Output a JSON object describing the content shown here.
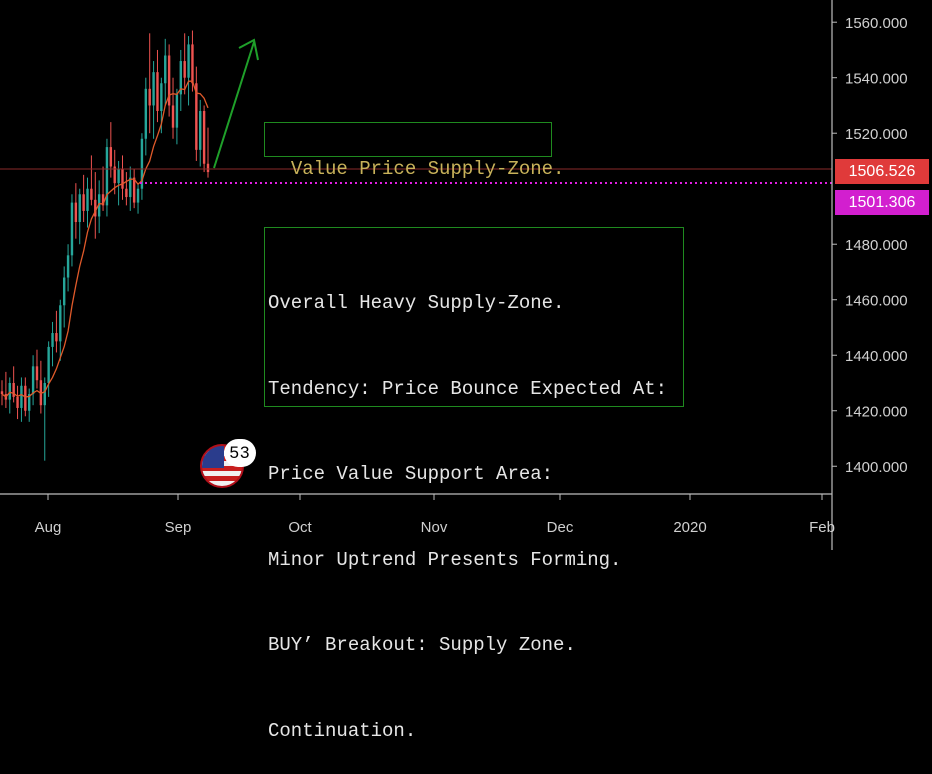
{
  "chart_data": {
    "type": "candlestick",
    "xlabels": [
      "Aug",
      "Sep",
      "Oct",
      "Nov",
      "Dec",
      "2020",
      "Feb"
    ],
    "ylim": [
      1390,
      1568
    ],
    "yticks": [
      "1560.000",
      "1540.000",
      "1520.000",
      "1480.000",
      "1460.000",
      "1440.000",
      "1420.000",
      "1400.000"
    ],
    "last_price": "1506.526",
    "horizontal_line": "1501.306",
    "colors": {
      "up": "#26a69a",
      "down": "#ef5350",
      "ma": "#e05a2a",
      "hline": "#e01fe0",
      "arrow": "#1fa02a",
      "last": "#e03a3a"
    },
    "candles": [
      [
        1427,
        1431,
        1422,
        1426
      ],
      [
        1426,
        1434,
        1421,
        1424
      ],
      [
        1424,
        1432,
        1419,
        1430
      ],
      [
        1430,
        1436,
        1423,
        1425
      ],
      [
        1425,
        1429,
        1417,
        1421
      ],
      [
        1421,
        1432,
        1416,
        1429
      ],
      [
        1429,
        1432,
        1418,
        1420
      ],
      [
        1420,
        1428,
        1416,
        1426
      ],
      [
        1426,
        1440,
        1422,
        1436
      ],
      [
        1436,
        1442,
        1428,
        1431
      ],
      [
        1431,
        1438,
        1419,
        1422
      ],
      [
        1422,
        1432,
        1402,
        1430
      ],
      [
        1430,
        1445,
        1425,
        1443
      ],
      [
        1443,
        1452,
        1436,
        1448
      ],
      [
        1448,
        1456,
        1441,
        1445
      ],
      [
        1445,
        1460,
        1438,
        1458
      ],
      [
        1458,
        1472,
        1450,
        1468
      ],
      [
        1468,
        1480,
        1463,
        1476
      ],
      [
        1476,
        1498,
        1472,
        1495
      ],
      [
        1495,
        1502,
        1482,
        1488
      ],
      [
        1488,
        1500,
        1480,
        1498
      ],
      [
        1498,
        1505,
        1488,
        1492
      ],
      [
        1492,
        1504,
        1486,
        1500
      ],
      [
        1500,
        1512,
        1494,
        1496
      ],
      [
        1496,
        1506,
        1482,
        1490
      ],
      [
        1490,
        1503,
        1484,
        1498
      ],
      [
        1498,
        1508,
        1492,
        1494
      ],
      [
        1494,
        1518,
        1490,
        1515
      ],
      [
        1515,
        1524,
        1504,
        1508
      ],
      [
        1508,
        1514,
        1498,
        1502
      ],
      [
        1502,
        1510,
        1494,
        1507
      ],
      [
        1507,
        1512,
        1496,
        1500
      ],
      [
        1500,
        1506,
        1494,
        1497
      ],
      [
        1497,
        1508,
        1492,
        1504
      ],
      [
        1504,
        1507,
        1493,
        1495
      ],
      [
        1495,
        1502,
        1491,
        1500
      ],
      [
        1500,
        1520,
        1496,
        1518
      ],
      [
        1518,
        1540,
        1512,
        1536
      ],
      [
        1536,
        1556,
        1520,
        1530
      ],
      [
        1530,
        1546,
        1518,
        1542
      ],
      [
        1542,
        1550,
        1524,
        1528
      ],
      [
        1528,
        1540,
        1520,
        1538
      ],
      [
        1538,
        1554,
        1530,
        1548
      ],
      [
        1548,
        1552,
        1526,
        1530
      ],
      [
        1530,
        1540,
        1518,
        1522
      ],
      [
        1522,
        1536,
        1516,
        1534
      ],
      [
        1534,
        1550,
        1528,
        1546
      ],
      [
        1546,
        1556,
        1534,
        1540
      ],
      [
        1540,
        1555,
        1530,
        1552
      ],
      [
        1552,
        1557,
        1535,
        1538
      ],
      [
        1538,
        1544,
        1510,
        1514
      ],
      [
        1514,
        1532,
        1508,
        1528
      ],
      [
        1528,
        1530,
        1506,
        1509
      ],
      [
        1509,
        1522,
        1504,
        1506
      ]
    ]
  },
  "annotations": {
    "title_box": "Value Price Supply-Zone.",
    "notes": [
      "Overall Heavy Supply-Zone.",
      "Tendency: Price Bounce Expected At:",
      "Price Value Support Area:",
      "Minor Uptrend Presents Forming.",
      "BUY’ Breakout: Supply Zone.",
      "Continuation."
    ]
  },
  "events": {
    "badge_count": "53",
    "icon": "us-flag-icon"
  }
}
